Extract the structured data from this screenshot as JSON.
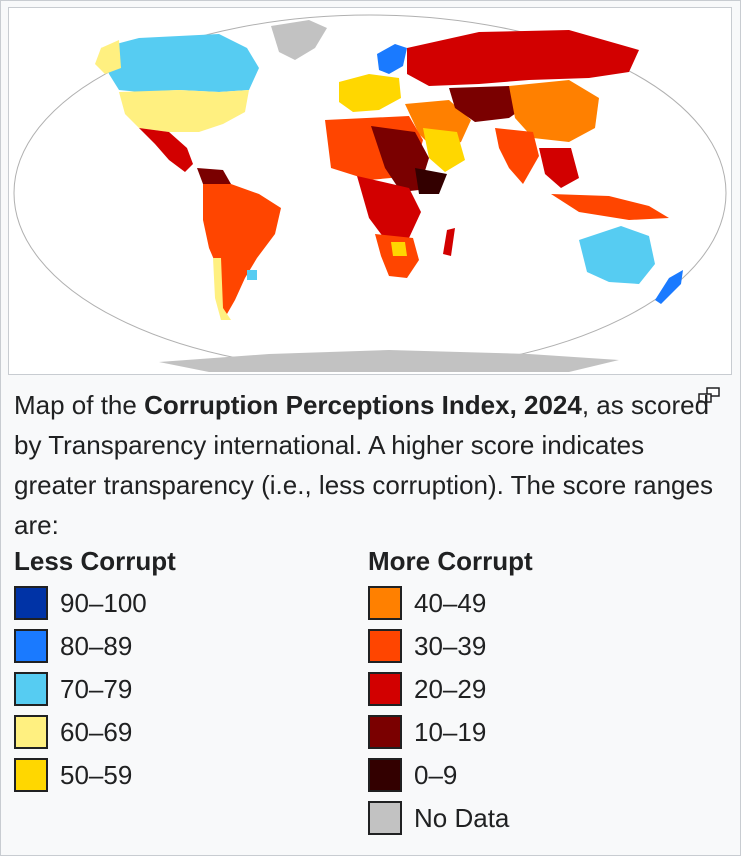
{
  "map": {
    "title": "",
    "colors": {
      "ocean": "#ffffff",
      "no_data": "#c2c2c2",
      "c90": "#0033a6",
      "c80": "#1a7aff",
      "c70": "#56ccf2",
      "c60": "#fff080",
      "c50": "#ffd700",
      "c40": "#ff8000",
      "c30": "#ff4500",
      "c20": "#d20000",
      "c10": "#7a0000",
      "c0": "#330000"
    }
  },
  "caption": {
    "part1": "Map of the ",
    "bold": "Corruption Perceptions Index, 2024",
    "part2": ", as scored by Transparency international. A higher score indicates greater transparency (i.e., less corruption). The score ranges are:"
  },
  "legend": {
    "left_heading": "Less Corrupt",
    "right_heading": "More Corrupt",
    "left_items": [
      {
        "label": "90–100",
        "color": "#0033a6"
      },
      {
        "label": "80–89",
        "color": "#1a7aff"
      },
      {
        "label": "70–79",
        "color": "#56ccf2"
      },
      {
        "label": "60–69",
        "color": "#fff080"
      },
      {
        "label": "50–59",
        "color": "#ffd700"
      }
    ],
    "right_items": [
      {
        "label": "40–49",
        "color": "#ff8000"
      },
      {
        "label": "30–39",
        "color": "#ff4500"
      },
      {
        "label": "20–29",
        "color": "#d20000"
      },
      {
        "label": "10–19",
        "color": "#7a0000"
      },
      {
        "label": "0–9",
        "color": "#330000"
      },
      {
        "label": "No Data",
        "color": "#c2c2c2"
      }
    ]
  }
}
